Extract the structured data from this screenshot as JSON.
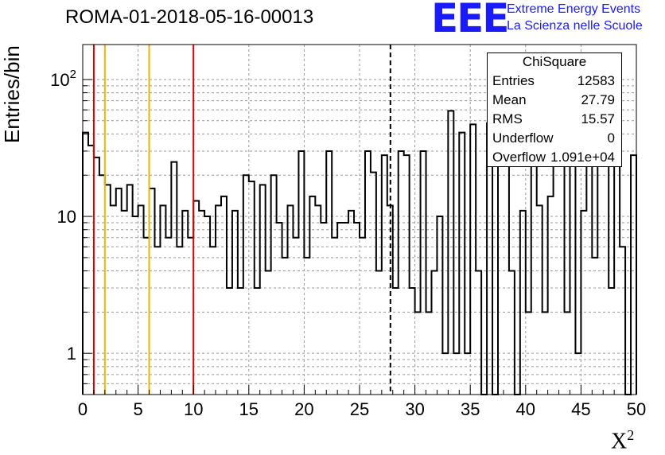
{
  "title": "ROMA-01-2018-05-16-00013",
  "logo": {
    "mark": "EEE",
    "line1": "Extreme Energy Events",
    "line2": "La Scienza nelle Scuole"
  },
  "stats_box": {
    "title": "ChiSquare",
    "rows": [
      {
        "label": "Entries",
        "value": "12583"
      },
      {
        "label": "Mean",
        "value": "27.79"
      },
      {
        "label": "RMS",
        "value": "15.57"
      },
      {
        "label": "Underflow",
        "value": "0"
      },
      {
        "label": "Overflow",
        "value": "1.091e+04"
      }
    ]
  },
  "chart_data": {
    "type": "histogram",
    "title": "ROMA-01-2018-05-16-00013",
    "xlabel": "X",
    "xlabel_sup": "2",
    "ylabel": "Entries/bin",
    "xlim": [
      0,
      50
    ],
    "ylim": [
      0.5,
      180
    ],
    "y_scale": "log",
    "grid": true,
    "bin_width": 0.5,
    "x_ticks": [
      "0",
      "5",
      "10",
      "15",
      "20",
      "25",
      "30",
      "35",
      "40",
      "45",
      "50"
    ],
    "y_ticks": [
      {
        "value": 1,
        "label": "1"
      },
      {
        "value": 10,
        "label": "10"
      },
      {
        "value": 100,
        "label": "10",
        "sup": "2"
      }
    ],
    "bin_contents": [
      41,
      33,
      27,
      20,
      17,
      12,
      16,
      11,
      17,
      10,
      12,
      7,
      16,
      6,
      12,
      7,
      25,
      6,
      11,
      7,
      13,
      11,
      10,
      6,
      12,
      14,
      3,
      11,
      3,
      20,
      18,
      3,
      17,
      4,
      20,
      9,
      5,
      12,
      7,
      30,
      5,
      14,
      12,
      9,
      30,
      7,
      9,
      9,
      11,
      9,
      7,
      30,
      21,
      4,
      28,
      12,
      3,
      30,
      28,
      3,
      2,
      30,
      2,
      4,
      10,
      1,
      59,
      1,
      41,
      1,
      47,
      4,
      0,
      48,
      0,
      61,
      30,
      4,
      0,
      11,
      2,
      47,
      12,
      2,
      14,
      59,
      32,
      2,
      56,
      1,
      11,
      49,
      5,
      24,
      59,
      3,
      91,
      6,
      0,
      28
    ],
    "vertical_lines": [
      {
        "x": 1,
        "color": "#e00000",
        "style": "solid"
      },
      {
        "x": 2,
        "color": "#f0b400",
        "style": "solid"
      },
      {
        "x": 6,
        "color": "#f0b400",
        "style": "solid"
      },
      {
        "x": 10,
        "color": "#e00000",
        "style": "solid"
      },
      {
        "x": 27.79,
        "color": "#000000",
        "style": "dashed"
      }
    ]
  }
}
